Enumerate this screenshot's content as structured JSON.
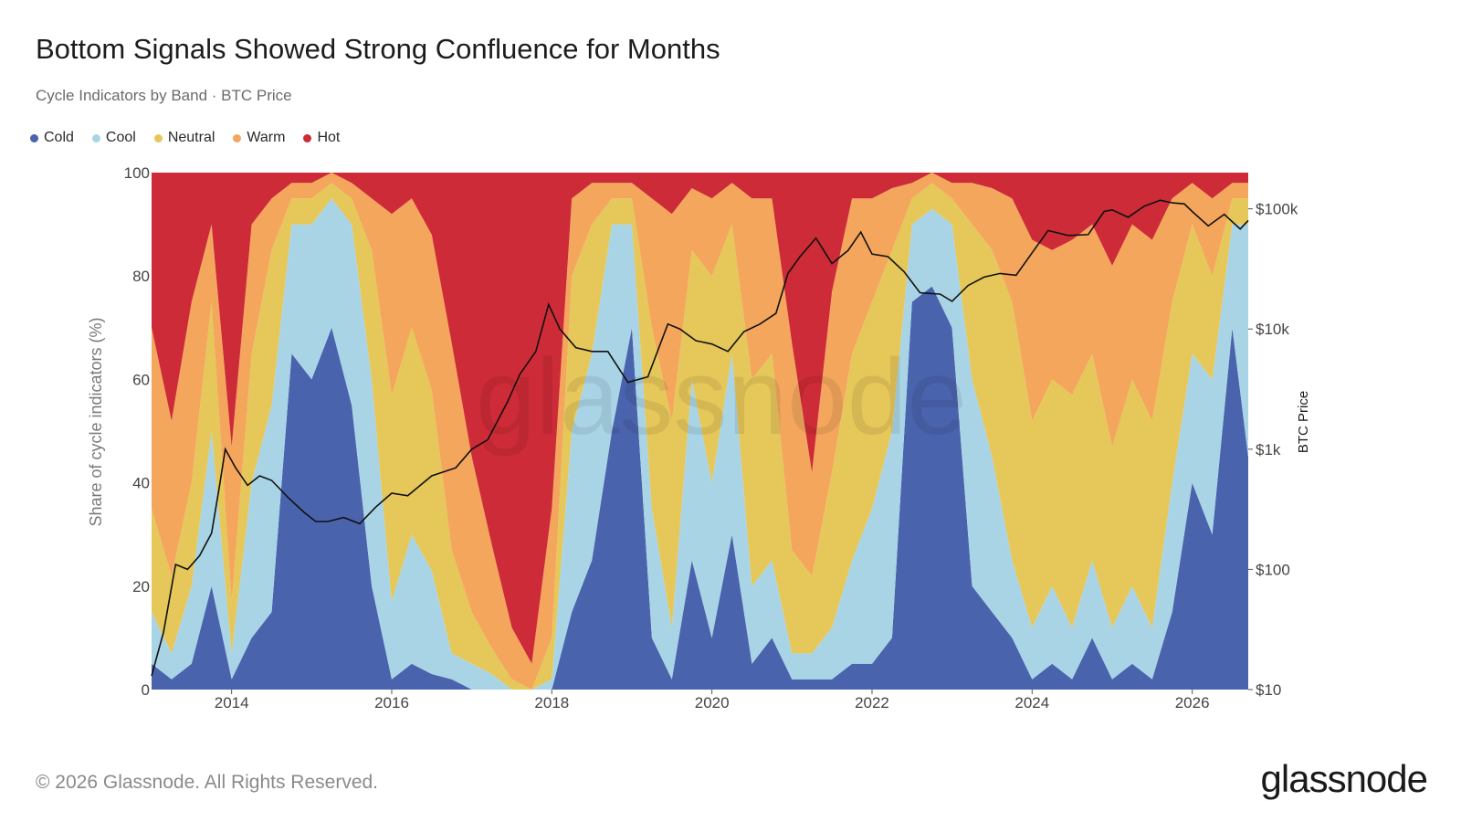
{
  "title": "Bottom Signals Showed Strong Confluence for Months",
  "subtitle": "Cycle Indicators by Band · BTC Price",
  "footer": "© 2026 Glassnode. All Rights Reserved.",
  "brand": "glassnode",
  "watermark": "glassnode",
  "legend": [
    {
      "name": "Cold",
      "color": "#4a63ad"
    },
    {
      "name": "Cool",
      "color": "#a9d4e6"
    },
    {
      "name": "Neutral",
      "color": "#e6c75a"
    },
    {
      "name": "Warm",
      "color": "#f4a65d"
    },
    {
      "name": "Hot",
      "color": "#cd2b37"
    }
  ],
  "chart_data": {
    "type": "area",
    "stacked": true,
    "ylabel": "Share of cycle indicators (%)",
    "y2label": "BTC Price",
    "ylim": [
      0,
      100
    ],
    "y2scale": "log",
    "y2lim": [
      10,
      200000
    ],
    "xlim": [
      2013.0,
      2026.7
    ],
    "x_ticks": [
      "2014",
      "2016",
      "2018",
      "2020",
      "2022",
      "2024",
      "2026"
    ],
    "y_ticks": [
      "0",
      "20",
      "40",
      "60",
      "80",
      "100"
    ],
    "y2_ticks": [
      "$10",
      "$100",
      "$1k",
      "$10k",
      "$100k"
    ],
    "legend_position": "top-left",
    "grid": false,
    "x": [
      2013.0,
      2013.25,
      2013.5,
      2013.75,
      2014.0,
      2014.25,
      2014.5,
      2014.75,
      2015.0,
      2015.25,
      2015.5,
      2015.75,
      2016.0,
      2016.25,
      2016.5,
      2016.75,
      2017.0,
      2017.25,
      2017.5,
      2017.75,
      2018.0,
      2018.25,
      2018.5,
      2018.75,
      2019.0,
      2019.25,
      2019.5,
      2019.75,
      2020.0,
      2020.25,
      2020.5,
      2020.75,
      2021.0,
      2021.25,
      2021.5,
      2021.75,
      2022.0,
      2022.25,
      2022.5,
      2022.75,
      2023.0,
      2023.25,
      2023.5,
      2023.75,
      2024.0,
      2024.25,
      2024.5,
      2024.75,
      2025.0,
      2025.25,
      2025.5,
      2025.75,
      2026.0,
      2026.25,
      2026.5,
      2026.7
    ],
    "series": [
      {
        "name": "Cold",
        "values": [
          5,
          2,
          5,
          20,
          2,
          10,
          15,
          65,
          60,
          70,
          55,
          20,
          2,
          5,
          3,
          2,
          0,
          0,
          0,
          0,
          0,
          15,
          25,
          50,
          70,
          10,
          2,
          25,
          10,
          30,
          5,
          10,
          2,
          2,
          2,
          5,
          5,
          10,
          75,
          78,
          70,
          20,
          15,
          10,
          2,
          5,
          2,
          10,
          2,
          5,
          2,
          15,
          40,
          30,
          70,
          45
        ]
      },
      {
        "name": "Cool",
        "values": [
          10,
          5,
          15,
          30,
          5,
          30,
          40,
          25,
          30,
          25,
          35,
          40,
          15,
          25,
          20,
          5,
          5,
          3,
          0,
          0,
          2,
          35,
          40,
          40,
          20,
          25,
          10,
          35,
          30,
          35,
          15,
          15,
          5,
          5,
          10,
          20,
          30,
          40,
          15,
          15,
          20,
          40,
          30,
          15,
          10,
          15,
          10,
          15,
          10,
          15,
          10,
          25,
          25,
          30,
          20,
          45
        ]
      },
      {
        "name": "Neutral",
        "values": [
          20,
          15,
          20,
          25,
          10,
          25,
          30,
          5,
          5,
          3,
          5,
          25,
          40,
          40,
          35,
          20,
          10,
          5,
          2,
          0,
          8,
          30,
          25,
          5,
          5,
          35,
          40,
          25,
          40,
          25,
          40,
          40,
          20,
          15,
          30,
          40,
          40,
          35,
          5,
          5,
          5,
          30,
          40,
          50,
          40,
          40,
          45,
          40,
          35,
          40,
          40,
          35,
          25,
          20,
          5,
          5
        ]
      },
      {
        "name": "Warm",
        "values": [
          35,
          30,
          35,
          15,
          30,
          25,
          10,
          3,
          3,
          2,
          3,
          10,
          35,
          25,
          30,
          40,
          30,
          20,
          10,
          5,
          25,
          15,
          8,
          3,
          3,
          25,
          40,
          12,
          15,
          8,
          35,
          30,
          40,
          20,
          35,
          30,
          20,
          12,
          3,
          2,
          3,
          8,
          12,
          20,
          35,
          25,
          30,
          25,
          35,
          30,
          35,
          20,
          8,
          15,
          3,
          3
        ]
      },
      {
        "name": "Hot",
        "values": [
          30,
          48,
          25,
          10,
          53,
          10,
          5,
          2,
          2,
          0,
          2,
          5,
          8,
          5,
          12,
          33,
          55,
          72,
          88,
          95,
          65,
          5,
          2,
          2,
          2,
          5,
          8,
          3,
          5,
          2,
          5,
          5,
          33,
          58,
          23,
          5,
          5,
          3,
          2,
          0,
          2,
          2,
          3,
          5,
          13,
          15,
          13,
          10,
          18,
          10,
          13,
          5,
          2,
          5,
          2,
          2
        ]
      }
    ],
    "price": {
      "name": "BTC Price",
      "x": [
        2013.0,
        2013.15,
        2013.3,
        2013.45,
        2013.6,
        2013.75,
        2013.85,
        2013.92,
        2014.05,
        2014.2,
        2014.35,
        2014.5,
        2014.7,
        2014.9,
        2015.05,
        2015.2,
        2015.4,
        2015.6,
        2015.8,
        2016.0,
        2016.2,
        2016.5,
        2016.8,
        2017.0,
        2017.2,
        2017.45,
        2017.6,
        2017.8,
        2017.96,
        2018.1,
        2018.3,
        2018.5,
        2018.7,
        2018.95,
        2019.2,
        2019.45,
        2019.6,
        2019.8,
        2020.0,
        2020.2,
        2020.4,
        2020.6,
        2020.8,
        2020.95,
        2021.1,
        2021.3,
        2021.5,
        2021.7,
        2021.86,
        2022.0,
        2022.2,
        2022.4,
        2022.6,
        2022.85,
        2023.0,
        2023.2,
        2023.4,
        2023.6,
        2023.8,
        2024.0,
        2024.2,
        2024.45,
        2024.7,
        2024.9,
        2025.0,
        2025.2,
        2025.4,
        2025.6,
        2025.75,
        2025.9,
        2026.0,
        2026.2,
        2026.4,
        2026.6,
        2026.7
      ],
      "values": [
        13,
        30,
        110,
        100,
        130,
        200,
        500,
        1000,
        700,
        500,
        600,
        550,
        400,
        300,
        250,
        250,
        270,
        240,
        330,
        430,
        410,
        600,
        700,
        1000,
        1200,
        2500,
        4200,
        6500,
        16000,
        10000,
        7000,
        6500,
        6500,
        3600,
        4000,
        11000,
        10000,
        8000,
        7500,
        6500,
        9500,
        11000,
        13500,
        29000,
        40000,
        57000,
        35000,
        45000,
        64000,
        42000,
        40000,
        30000,
        20000,
        19500,
        17000,
        23000,
        27000,
        29000,
        28000,
        43000,
        66000,
        60000,
        61000,
        95000,
        98000,
        85000,
        105000,
        118000,
        112000,
        110000,
        95000,
        72000,
        90000,
        68000,
        80000
      ]
    }
  }
}
